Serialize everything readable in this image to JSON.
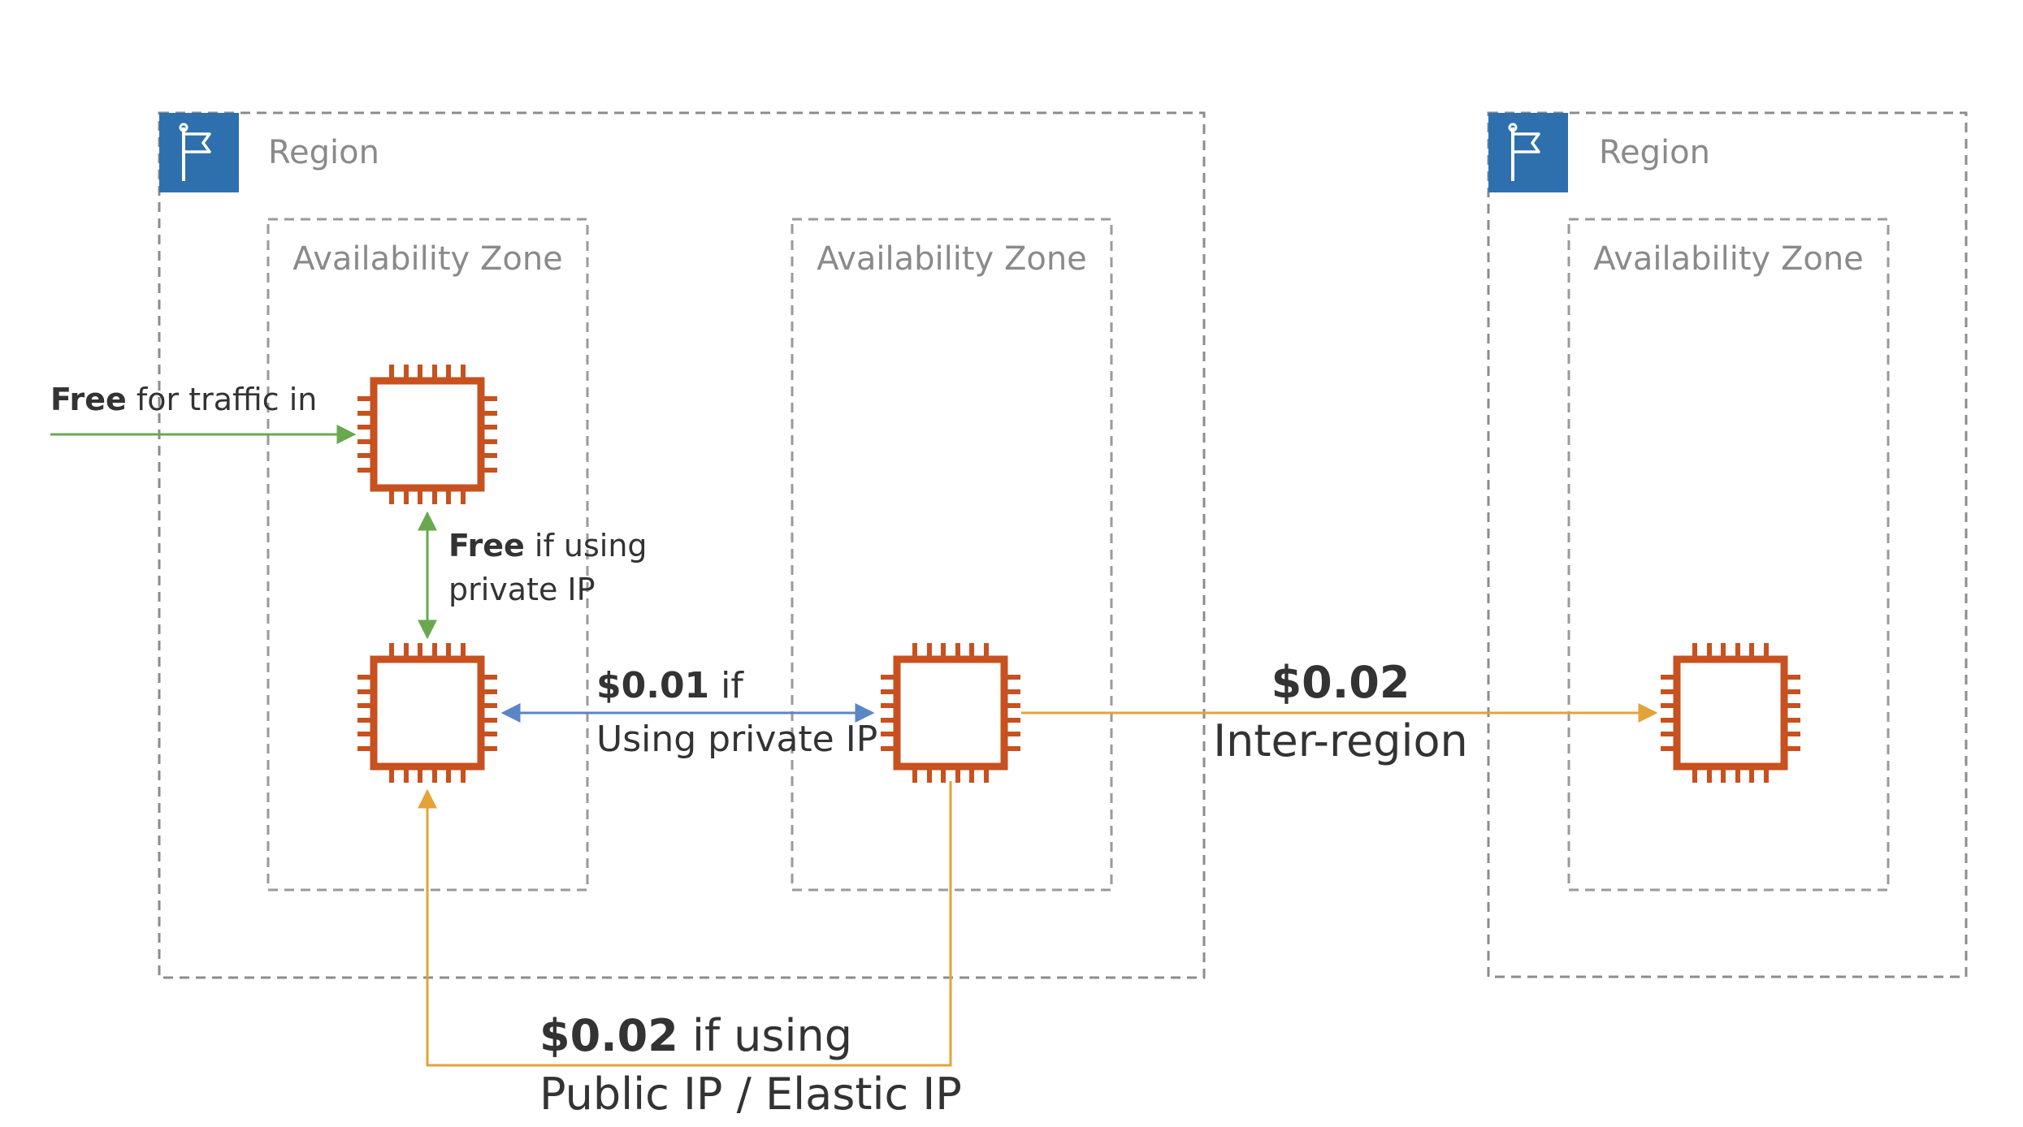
{
  "colors": {
    "region_border": "#8c8c8c",
    "az_border": "#9a9a9a",
    "region_icon_bg": "#2e6fae",
    "chip": "#c7511f",
    "free_arrow": "#6aa84f",
    "private_arrow": "#5b86c5",
    "paid_arrow": "#e3a33a",
    "label_gray": "#8a8a8a",
    "text": "#333333"
  },
  "regions": [
    {
      "label": "Region",
      "icon": "flag-icon"
    },
    {
      "label": "Region",
      "icon": "flag-icon"
    }
  ],
  "availability_zones": [
    {
      "label": "Availability Zone"
    },
    {
      "label": "Availability Zone"
    },
    {
      "label": "Availability Zone"
    }
  ],
  "instances": [
    {
      "icon": "ec2-instance-chip-icon"
    },
    {
      "icon": "ec2-instance-chip-icon"
    },
    {
      "icon": "ec2-instance-chip-icon"
    },
    {
      "icon": "ec2-instance-chip-icon"
    }
  ],
  "labels": {
    "traffic_in": {
      "bold": "Free",
      "rest": " for traffic in"
    },
    "same_az": {
      "bold": "Free",
      "rest": " if using",
      "line2": "private IP"
    },
    "cross_az": {
      "bold": "$0.01",
      "rest": " if",
      "line2": "Using private IP"
    },
    "inter_region": {
      "line1": "$0.02",
      "line2": "Inter-region"
    },
    "public_ip": {
      "bold": "$0.02",
      "rest": " if using",
      "line2": "Public IP / Elastic IP"
    }
  }
}
